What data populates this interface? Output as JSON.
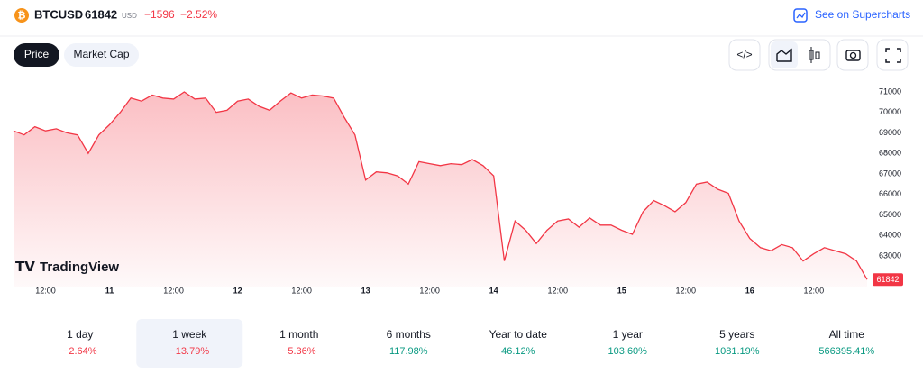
{
  "header": {
    "symbol": "BTCUSD",
    "price": "61842",
    "currency": "USD",
    "change": "−1596",
    "change_percent": "−2.52%",
    "link": "See on Supercharts"
  },
  "tabs": [
    "Price",
    "Market Cap"
  ],
  "logo": "TradingView",
  "chart_data": {
    "type": "area",
    "color": "#f23645",
    "values": [
      69100,
      68900,
      69300,
      69100,
      69200,
      69000,
      68900,
      68000,
      68900,
      69400,
      70000,
      70700,
      70550,
      70850,
      70700,
      70650,
      71000,
      70650,
      70700,
      70000,
      70100,
      70550,
      70650,
      70300,
      70100,
      70550,
      70950,
      70700,
      70850,
      70800,
      70700,
      69750,
      68900,
      66700,
      67100,
      67050,
      66900,
      66500,
      67600,
      67500,
      67400,
      67500,
      67450,
      67700,
      67400,
      66900,
      62750,
      64700,
      64250,
      63600,
      64250,
      64700,
      64800,
      64400,
      64850,
      64500,
      64500,
      64250,
      64050,
      65150,
      65700,
      65450,
      65150,
      65600,
      66500,
      66600,
      66250,
      66050,
      64700,
      63850,
      63400,
      63250,
      63550,
      63400,
      62750,
      63100,
      63400,
      63250,
      63100,
      62750,
      61842
    ],
    "xlim": [
      0,
      80
    ],
    "xticks": [
      {
        "value": 3,
        "label": "12:00"
      },
      {
        "value": 9,
        "label": "11"
      },
      {
        "value": 15,
        "label": "12:00"
      },
      {
        "value": 21,
        "label": "12"
      },
      {
        "value": 27,
        "label": "12:00"
      },
      {
        "value": 33,
        "label": "13"
      },
      {
        "value": 39,
        "label": "12:00"
      },
      {
        "value": 45,
        "label": "14"
      },
      {
        "value": 51,
        "label": "12:00"
      },
      {
        "value": 57,
        "label": "15"
      },
      {
        "value": 63,
        "label": "12:00"
      },
      {
        "value": 69,
        "label": "16"
      },
      {
        "value": 75,
        "label": "12:00"
      }
    ],
    "ylim": [
      61500,
      71500
    ],
    "yticks": [
      63000,
      64000,
      65000,
      66000,
      67000,
      68000,
      69000,
      70000,
      71000
    ],
    "grid": false
  },
  "periods": [
    {
      "name": "1 day",
      "change": "−2.64%"
    },
    {
      "name": "1 week",
      "change": "−13.79%"
    },
    {
      "name": "1 month",
      "change": "−5.36%"
    },
    {
      "name": "6 months",
      "change": "117.98%"
    },
    {
      "name": "Year to date",
      "change": "46.12%"
    },
    {
      "name": "1 year",
      "change": "103.60%"
    },
    {
      "name": "5 years",
      "change": "1081.19%"
    },
    {
      "name": "All time",
      "change": "566395.41%"
    }
  ]
}
